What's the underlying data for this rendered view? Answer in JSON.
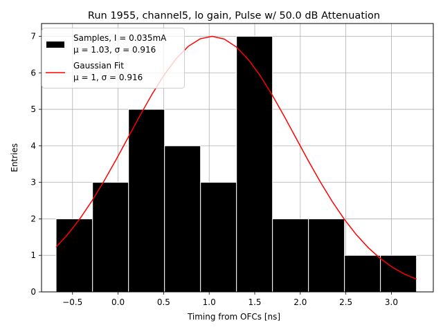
{
  "chart_data": {
    "type": "bar",
    "title": "Run 1955, channel5, lo gain, Pulse w/ 50.0 dB Attenuation",
    "xlabel": "Timing from OFCs [ns]",
    "ylabel": "Entries",
    "xlim": [
      -0.84,
      3.46
    ],
    "ylim": [
      0,
      7.35
    ],
    "grid": true,
    "legend_position": "top-left",
    "x_ticks": [
      "−0.5",
      "0.0",
      "0.5",
      "1.0",
      "1.5",
      "2.0",
      "2.5",
      "3.0"
    ],
    "x_tick_values": [
      -0.5,
      0.0,
      0.5,
      1.0,
      1.5,
      2.0,
      2.5,
      3.0
    ],
    "y_ticks": [
      "0",
      "1",
      "2",
      "3",
      "4",
      "5",
      "6",
      "7"
    ],
    "y_tick_values": [
      0,
      1,
      2,
      3,
      4,
      5,
      6,
      7
    ],
    "histogram": {
      "name_line1": "Samples, I = 0.035mA",
      "name_line2": "μ = 1.03, σ = 0.916",
      "color": "#000000",
      "edge_color": "#ffffff",
      "bins": [
        {
          "x0": -0.68,
          "x1": -0.28,
          "value": 2
        },
        {
          "x0": -0.28,
          "x1": 0.115,
          "value": 3
        },
        {
          "x0": 0.115,
          "x1": 0.51,
          "value": 5
        },
        {
          "x0": 0.51,
          "x1": 0.905,
          "value": 4
        },
        {
          "x0": 0.905,
          "x1": 1.3,
          "value": 3
        },
        {
          "x0": 1.3,
          "x1": 1.695,
          "value": 7
        },
        {
          "x0": 1.695,
          "x1": 2.09,
          "value": 2
        },
        {
          "x0": 2.09,
          "x1": 2.485,
          "value": 2
        },
        {
          "x0": 2.485,
          "x1": 2.88,
          "value": 1
        },
        {
          "x0": 2.88,
          "x1": 3.275,
          "value": 1
        }
      ]
    },
    "fit": {
      "name_line1": "Gaussian Fit",
      "name_line2": "μ = 1, σ = 0.916",
      "color": "#ff0000",
      "amplitude": 7.0,
      "mu": 1.03,
      "sigma": 0.916,
      "x_start": -0.68,
      "x_end": 3.275
    }
  }
}
